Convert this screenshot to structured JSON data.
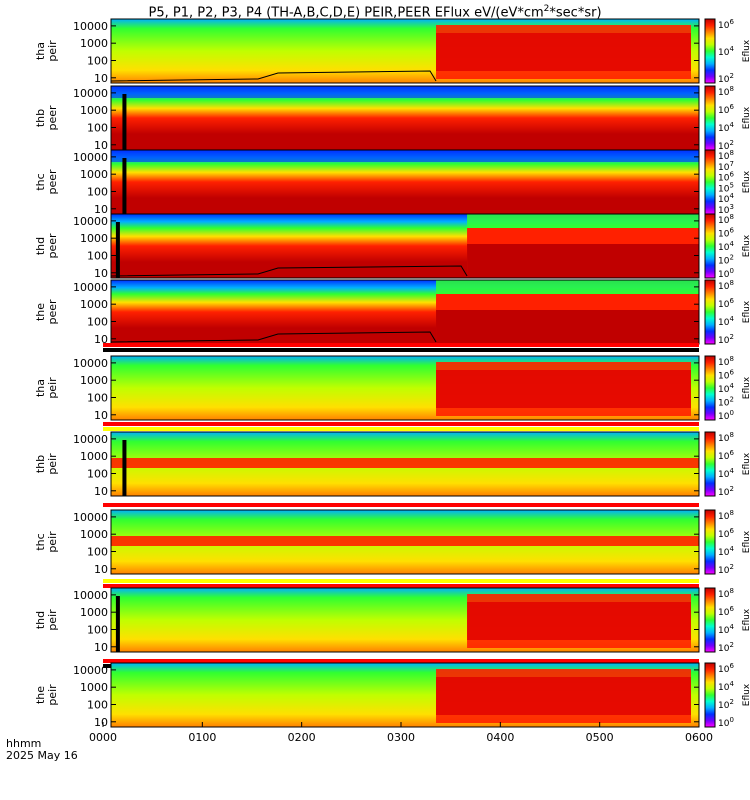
{
  "title": "P5, P1, P2, P3, P4 (TH-A,B,C,D,E) PEIR,PEER EFlux eV/(eV*cm",
  "title_sup": "2",
  "title_tail": "*sec*sr)",
  "x_axis": {
    "label_line1": "hhmm",
    "label_line2": "2025 May 16",
    "ticks": [
      "0000",
      "0100",
      "0200",
      "0300",
      "0400",
      "0500",
      "0600"
    ]
  },
  "chart_data": {
    "type": "heatmap",
    "x_range": [
      "0000",
      "0600"
    ],
    "panels": [
      {
        "label": "tha peir",
        "probe": "A",
        "species": "ion",
        "y_ticks": [
          "10000",
          "1000",
          "100",
          "10"
        ],
        "ylim": [
          5,
          25000
        ],
        "y_scale": "log",
        "cbar_ticks": [
          "10^6",
          "10^4",
          "10^2"
        ],
        "cbar_label": "Eflux",
        "bar_colors": [],
        "feature": {
          "boundary_hhmm": "0319",
          "gap_hhmm": [],
          "black_curve": true
        }
      },
      {
        "label": "thb peer",
        "probe": "B",
        "species": "electron",
        "y_ticks": [
          "10000",
          "1000",
          "100",
          "10"
        ],
        "ylim": [
          5,
          25000
        ],
        "y_scale": "log",
        "cbar_ticks": [
          "10^8",
          "10^6",
          "10^4",
          "10^2"
        ],
        "cbar_label": "Eflux",
        "bar_colors": [],
        "feature": {
          "boundary_hhmm": "",
          "gap_hhmm": [
            "0007"
          ],
          "black_curve": false
        }
      },
      {
        "label": "thc peer",
        "probe": "C",
        "species": "electron",
        "y_ticks": [
          "10000",
          "1000",
          "100",
          "10"
        ],
        "ylim": [
          5,
          25000
        ],
        "y_scale": "log",
        "cbar_ticks": [
          "10^8",
          "10^7",
          "10^6",
          "10^5",
          "10^4",
          "10^3"
        ],
        "cbar_label": "Eflux",
        "bar_colors": [],
        "feature": {
          "boundary_hhmm": "",
          "gap_hhmm": [
            "0007"
          ],
          "black_curve": false
        }
      },
      {
        "label": "thd peer",
        "probe": "D",
        "species": "electron",
        "y_ticks": [
          "10000",
          "1000",
          "100",
          "10"
        ],
        "ylim": [
          5,
          25000
        ],
        "y_scale": "log",
        "cbar_ticks": [
          "10^8",
          "10^6",
          "10^4",
          "10^2",
          "10^0"
        ],
        "cbar_label": "Eflux",
        "bar_colors": [],
        "feature": {
          "boundary_hhmm": "0338",
          "gap_hhmm": [
            "0003"
          ],
          "black_curve": true
        }
      },
      {
        "label": "the peer",
        "probe": "E",
        "species": "electron",
        "y_ticks": [
          "10000",
          "1000",
          "100",
          "10"
        ],
        "ylim": [
          5,
          25000
        ],
        "y_scale": "log",
        "cbar_ticks": [
          "10^8",
          "10^6",
          "10^4",
          "10^2"
        ],
        "cbar_label": "Eflux",
        "bar_colors": [
          "#ff0000",
          "#000000"
        ],
        "feature": {
          "boundary_hhmm": "0319",
          "gap_hhmm": [],
          "black_curve": true
        }
      },
      {
        "label": "tha peir",
        "probe": "A",
        "species": "ion",
        "y_ticks": [
          "10000",
          "1000",
          "100",
          "10"
        ],
        "ylim": [
          5,
          25000
        ],
        "y_scale": "log",
        "cbar_ticks": [
          "10^8",
          "10^6",
          "10^4",
          "10^2",
          "10^0"
        ],
        "cbar_label": "Eflux",
        "bar_colors": [
          "#ff0000",
          "#ffff00"
        ],
        "feature": {
          "boundary_hhmm": "0319",
          "gap_hhmm": [],
          "black_curve": false
        }
      },
      {
        "label": "thb peir",
        "probe": "B",
        "species": "ion",
        "y_ticks": [
          "10000",
          "1000",
          "100",
          "10"
        ],
        "ylim": [
          5,
          25000
        ],
        "y_scale": "log",
        "cbar_ticks": [
          "10^8",
          "10^6",
          "10^4",
          "10^2"
        ],
        "cbar_label": "Eflux",
        "bar_colors": [
          "#ff0000"
        ],
        "feature": {
          "boundary_hhmm": "",
          "gap_hhmm": [
            "0007"
          ],
          "black_curve": false
        }
      },
      {
        "label": "thc peir",
        "probe": "C",
        "species": "ion",
        "y_ticks": [
          "10000",
          "1000",
          "100",
          "10"
        ],
        "ylim": [
          5,
          25000
        ],
        "y_scale": "log",
        "cbar_ticks": [
          "10^8",
          "10^6",
          "10^4",
          "10^2"
        ],
        "cbar_label": "Eflux",
        "bar_colors": [
          "#ffff00",
          "#ff0000"
        ],
        "feature": {
          "boundary_hhmm": "",
          "gap_hhmm": [],
          "black_curve": false
        }
      },
      {
        "label": "thd peir",
        "probe": "D",
        "species": "ion",
        "y_ticks": [
          "10000",
          "1000",
          "100",
          "10"
        ],
        "ylim": [
          5,
          25000
        ],
        "y_scale": "log",
        "cbar_ticks": [
          "10^8",
          "10^6",
          "10^4",
          "10^2"
        ],
        "cbar_label": "Eflux",
        "bar_colors": [
          "#ff0000",
          "#000000"
        ],
        "feature": {
          "boundary_hhmm": "0338",
          "gap_hhmm": [
            "0003"
          ],
          "black_curve": false
        }
      },
      {
        "label": "the peir",
        "probe": "E",
        "species": "ion",
        "y_ticks": [
          "10000",
          "1000",
          "100",
          "10"
        ],
        "ylim": [
          5,
          25000
        ],
        "y_scale": "log",
        "cbar_ticks": [
          "10^6",
          "10^4",
          "10^2",
          "10^0"
        ],
        "cbar_label": "Eflux",
        "bar_colors": [],
        "feature": {
          "boundary_hhmm": "0319",
          "gap_hhmm": [],
          "black_curve": false
        }
      }
    ]
  },
  "colors": {
    "background": "#ffffff",
    "axes": "#000000",
    "colormap": [
      "#ff00ff",
      "#7000ff",
      "#0030ff",
      "#00b0ff",
      "#00ffd0",
      "#30ff30",
      "#c0ff00",
      "#ffe000",
      "#ff8000",
      "#ff2000",
      "#c00000"
    ]
  }
}
